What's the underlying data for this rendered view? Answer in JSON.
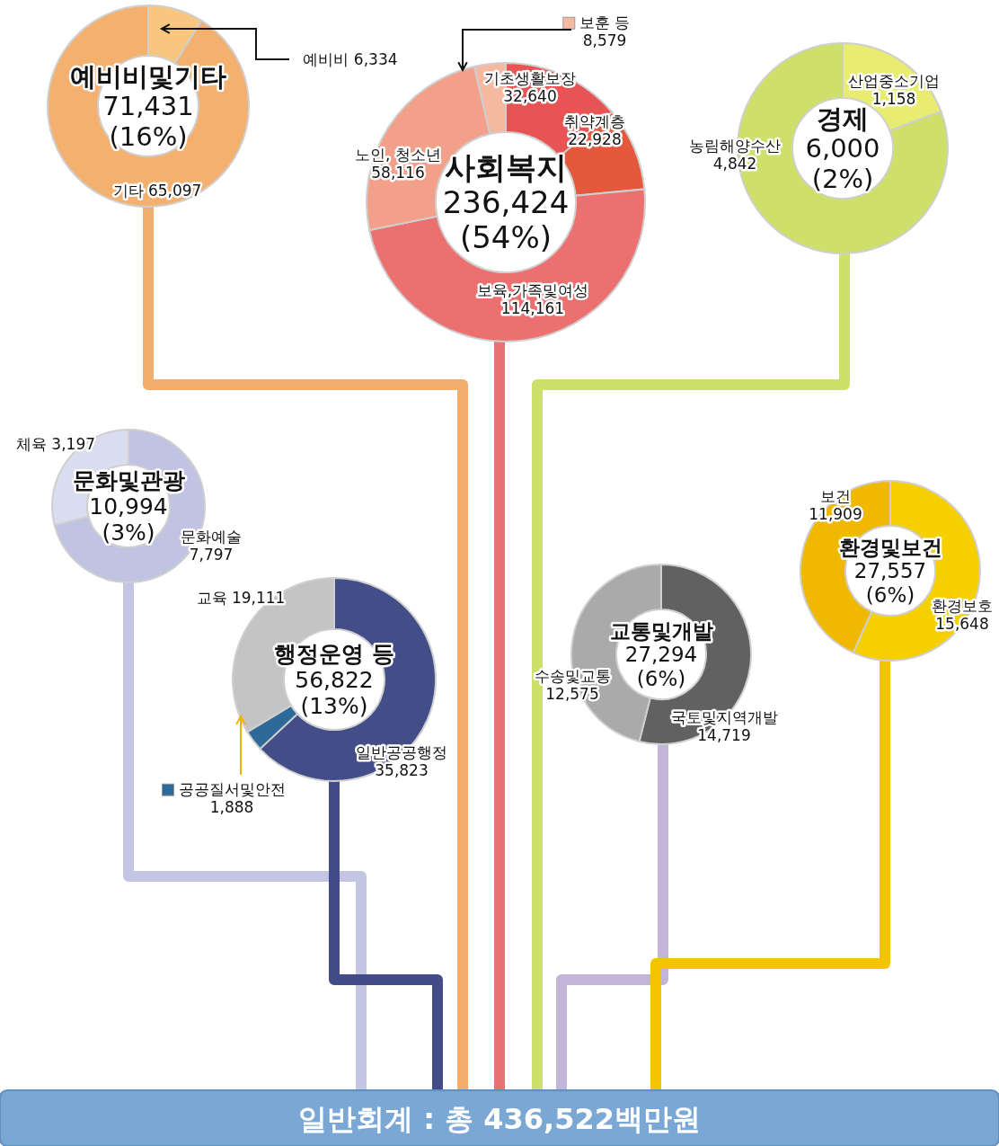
{
  "chart_data": [
    {
      "type": "donut",
      "title": "예비비및기타",
      "annotations": [
        "71,431",
        "(16%)"
      ],
      "categories": [
        "예비비",
        "기타"
      ],
      "values": [
        6334,
        65097
      ],
      "value_labels": [
        "6,334",
        "65,097"
      ],
      "colors": [
        "#f8c67e",
        "#f4b06e"
      ]
    },
    {
      "type": "donut",
      "title": "사회복지",
      "annotations": [
        "236,424",
        "(54%)"
      ],
      "categories": [
        "기초생활보장",
        "취약계층",
        "보육,가족및여성",
        "노인, 청소년",
        "보훈 등"
      ],
      "values": [
        32640,
        22928,
        114161,
        58116,
        8579
      ],
      "value_labels": [
        "32,640",
        "22,928",
        "114,161",
        "58,116",
        "8,579"
      ],
      "colors": [
        "#e85454",
        "#e4593c",
        "#ec7070",
        "#f2a08a",
        "#f5b8a0"
      ]
    },
    {
      "type": "donut",
      "title": "경제",
      "annotations": [
        "6,000",
        "(2%)"
      ],
      "categories": [
        "산업중소기업",
        "농림해양수산"
      ],
      "values": [
        1158,
        4842
      ],
      "value_labels": [
        "1,158",
        "4,842"
      ],
      "colors": [
        "#e8ec70",
        "#cfe06a"
      ]
    },
    {
      "type": "donut",
      "title": "문화및관광",
      "annotations": [
        "10,994",
        "(3%)"
      ],
      "categories": [
        "문화예술",
        "체육"
      ],
      "values": [
        7797,
        3197
      ],
      "value_labels": [
        "7,797",
        "3,197"
      ],
      "colors": [
        "#c1c3e2",
        "#dadcef"
      ]
    },
    {
      "type": "donut",
      "title": "행정운영 등",
      "annotations": [
        "56,822",
        "(13%)"
      ],
      "categories": [
        "일반공공행정",
        "공공질서및안전",
        "교육"
      ],
      "values": [
        35823,
        1888,
        19111
      ],
      "value_labels": [
        "35,823",
        "1,888",
        "19,111"
      ],
      "colors": [
        "#434d87",
        "#2d6a9a",
        "#c4c4c4"
      ]
    },
    {
      "type": "donut",
      "title": "교통및개발",
      "annotations": [
        "27,294",
        "(6%)"
      ],
      "categories": [
        "국토및지역개발",
        "수송및교통"
      ],
      "values": [
        14719,
        12575
      ],
      "value_labels": [
        "14,719",
        "12,575"
      ],
      "colors": [
        "#616161",
        "#aaaaaa"
      ]
    },
    {
      "type": "donut",
      "title": "환경및보건",
      "annotations": [
        "27,557",
        "(6%)"
      ],
      "categories": [
        "환경보호",
        "보건"
      ],
      "values": [
        15648,
        11909
      ],
      "value_labels": [
        "15,648",
        "11,909"
      ],
      "colors": [
        "#f5cf00",
        "#f0b900"
      ]
    },
    {
      "type": "other",
      "title": "일반회계 : 총 436,522백만원"
    }
  ]
}
